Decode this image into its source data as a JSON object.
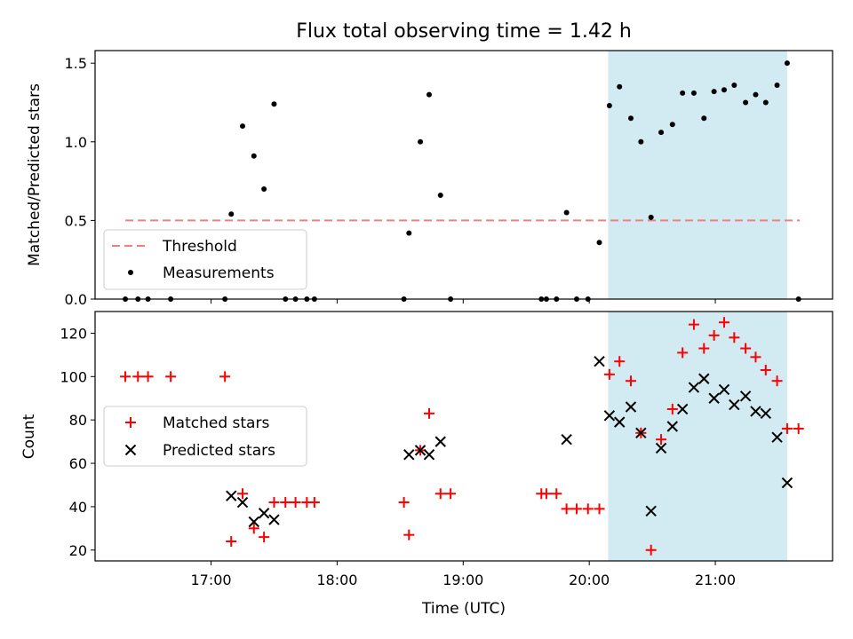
{
  "chart_data": [
    {
      "type": "scatter",
      "title": "Flux total observing time = 1.42 h",
      "xlabel": "",
      "ylabel": "Matched/Predicted stars",
      "ylim": [
        0,
        1.58
      ],
      "yticks": [
        "0.0",
        "0.5",
        "1.0",
        "1.5"
      ],
      "ytick_values": [
        0,
        0.5,
        1.0,
        1.5
      ],
      "legend_position": "lower-left",
      "highlight_span": {
        "x_start": 20.15,
        "x_end": 21.57,
        "color": "#add8e6"
      },
      "series": [
        {
          "name": "Threshold",
          "kind": "dashed-line",
          "color": "#f08080",
          "x": [
            16.32,
            21.67
          ],
          "y": [
            0.5,
            0.5
          ]
        },
        {
          "name": "Measurements",
          "kind": "dots",
          "color": "#000000",
          "points": [
            [
              16.32,
              0
            ],
            [
              16.42,
              0
            ],
            [
              16.5,
              0
            ],
            [
              16.68,
              0
            ],
            [
              17.11,
              0
            ],
            [
              17.16,
              0.54
            ],
            [
              17.25,
              1.1
            ],
            [
              17.34,
              0.91
            ],
            [
              17.42,
              0.7
            ],
            [
              17.5,
              1.24
            ],
            [
              17.59,
              0
            ],
            [
              17.67,
              0
            ],
            [
              17.76,
              0
            ],
            [
              17.82,
              0
            ],
            [
              18.53,
              0
            ],
            [
              18.57,
              0.42
            ],
            [
              18.66,
              1.0
            ],
            [
              18.73,
              1.3
            ],
            [
              18.82,
              0.66
            ],
            [
              18.9,
              0
            ],
            [
              19.62,
              0
            ],
            [
              19.66,
              0
            ],
            [
              19.74,
              0
            ],
            [
              19.82,
              0.55
            ],
            [
              19.9,
              0
            ],
            [
              19.99,
              0
            ],
            [
              20.08,
              0.36
            ],
            [
              20.16,
              1.23
            ],
            [
              20.24,
              1.35
            ],
            [
              20.33,
              1.15
            ],
            [
              20.41,
              1.0
            ],
            [
              20.49,
              0.52
            ],
            [
              20.57,
              1.06
            ],
            [
              20.66,
              1.11
            ],
            [
              20.74,
              1.31
            ],
            [
              20.83,
              1.31
            ],
            [
              20.91,
              1.15
            ],
            [
              20.99,
              1.32
            ],
            [
              21.07,
              1.33
            ],
            [
              21.15,
              1.36
            ],
            [
              21.24,
              1.25
            ],
            [
              21.32,
              1.3
            ],
            [
              21.4,
              1.25
            ],
            [
              21.49,
              1.36
            ],
            [
              21.57,
              1.5
            ],
            [
              21.66,
              0
            ]
          ]
        }
      ]
    },
    {
      "type": "scatter",
      "title": "",
      "xlabel": "Time (UTC)",
      "ylabel": "Count",
      "xlim": [
        16.08,
        21.93
      ],
      "ylim": [
        15,
        130
      ],
      "xticks": [
        "17:00",
        "18:00",
        "19:00",
        "20:00",
        "21:00"
      ],
      "xtick_values": [
        17,
        18,
        19,
        20,
        21
      ],
      "yticks": [
        "20",
        "40",
        "60",
        "80",
        "100",
        "120"
      ],
      "ytick_values": [
        20,
        40,
        60,
        80,
        100,
        120
      ],
      "legend_position": "center-left",
      "highlight_span": {
        "x_start": 20.15,
        "x_end": 21.57,
        "color": "#add8e6"
      },
      "series": [
        {
          "name": "Matched stars",
          "marker": "+",
          "color": "#ff0000",
          "points": [
            [
              16.32,
              100
            ],
            [
              16.42,
              100
            ],
            [
              16.5,
              100
            ],
            [
              16.68,
              100
            ],
            [
              17.11,
              100
            ],
            [
              17.16,
              24
            ],
            [
              17.25,
              46
            ],
            [
              17.34,
              30
            ],
            [
              17.42,
              26
            ],
            [
              17.5,
              42
            ],
            [
              17.59,
              42
            ],
            [
              17.67,
              42
            ],
            [
              17.76,
              42
            ],
            [
              17.82,
              42
            ],
            [
              18.53,
              42
            ],
            [
              18.57,
              27
            ],
            [
              18.66,
              66
            ],
            [
              18.73,
              83
            ],
            [
              18.82,
              46
            ],
            [
              18.9,
              46
            ],
            [
              19.62,
              46
            ],
            [
              19.66,
              46
            ],
            [
              19.74,
              46
            ],
            [
              19.82,
              39
            ],
            [
              19.9,
              39
            ],
            [
              19.99,
              39
            ],
            [
              20.08,
              39
            ],
            [
              20.16,
              101
            ],
            [
              20.24,
              107
            ],
            [
              20.33,
              98
            ],
            [
              20.41,
              74
            ],
            [
              20.49,
              20
            ],
            [
              20.57,
              71
            ],
            [
              20.66,
              85
            ],
            [
              20.74,
              111
            ],
            [
              20.83,
              124
            ],
            [
              20.91,
              113
            ],
            [
              20.99,
              119
            ],
            [
              21.07,
              125
            ],
            [
              21.15,
              118
            ],
            [
              21.24,
              113
            ],
            [
              21.32,
              109
            ],
            [
              21.4,
              103
            ],
            [
              21.49,
              98
            ],
            [
              21.57,
              76
            ],
            [
              21.66,
              76
            ]
          ]
        },
        {
          "name": "Predicted stars",
          "marker": "x",
          "color": "#000000",
          "points": [
            [
              17.16,
              45
            ],
            [
              17.25,
              42
            ],
            [
              17.34,
              33
            ],
            [
              17.42,
              37
            ],
            [
              17.5,
              34
            ],
            [
              18.57,
              64
            ],
            [
              18.66,
              66
            ],
            [
              18.73,
              64
            ],
            [
              18.82,
              70
            ],
            [
              19.82,
              71
            ],
            [
              20.08,
              107
            ],
            [
              20.16,
              82
            ],
            [
              20.24,
              79
            ],
            [
              20.33,
              86
            ],
            [
              20.41,
              74
            ],
            [
              20.49,
              38
            ],
            [
              20.57,
              67
            ],
            [
              20.66,
              77
            ],
            [
              20.74,
              85
            ],
            [
              20.83,
              95
            ],
            [
              20.91,
              99
            ],
            [
              20.99,
              90
            ],
            [
              21.07,
              94
            ],
            [
              21.15,
              87
            ],
            [
              21.24,
              91
            ],
            [
              21.32,
              84
            ],
            [
              21.4,
              83
            ],
            [
              21.49,
              72
            ],
            [
              21.57,
              51
            ]
          ]
        }
      ]
    }
  ]
}
